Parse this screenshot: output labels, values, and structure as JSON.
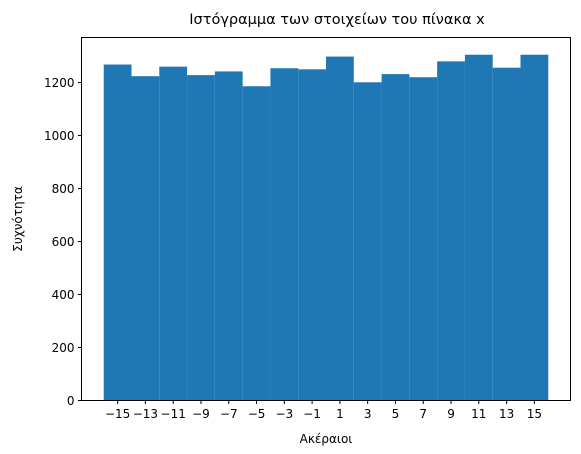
{
  "chart_data": {
    "type": "bar",
    "title": "Ιστόγραμμα των στοιχείων του πίνακα x",
    "xlabel": "Ακέραιοι",
    "ylabel": "Συχνότητα",
    "bins": [
      {
        "start": -16,
        "end": -14,
        "value": 1268
      },
      {
        "start": -14,
        "end": -12,
        "value": 1224
      },
      {
        "start": -12,
        "end": -10,
        "value": 1260
      },
      {
        "start": -10,
        "end": -8,
        "value": 1228
      },
      {
        "start": -8,
        "end": -6,
        "value": 1242
      },
      {
        "start": -6,
        "end": -4,
        "value": 1186
      },
      {
        "start": -4,
        "end": -2,
        "value": 1254
      },
      {
        "start": -2,
        "end": 0,
        "value": 1250
      },
      {
        "start": 0,
        "end": 2,
        "value": 1298
      },
      {
        "start": 2,
        "end": 4,
        "value": 1201
      },
      {
        "start": 4,
        "end": 6,
        "value": 1232
      },
      {
        "start": 6,
        "end": 8,
        "value": 1220
      },
      {
        "start": 8,
        "end": 10,
        "value": 1280
      },
      {
        "start": 10,
        "end": 12,
        "value": 1305
      },
      {
        "start": 12,
        "end": 14,
        "value": 1256
      },
      {
        "start": 14,
        "end": 16,
        "value": 1305
      }
    ],
    "xticks": [
      "−15",
      "−13",
      "−11",
      "−9",
      "−7",
      "−5",
      "−3",
      "−1",
      "1",
      "3",
      "5",
      "7",
      "9",
      "11",
      "13",
      "15"
    ],
    "yticks": [
      "0",
      "200",
      "400",
      "600",
      "800",
      "1000",
      "1200"
    ],
    "xlim": [
      -17.6,
      17.6
    ],
    "ylim": [
      0,
      1370
    ],
    "grid": false,
    "bar_color": "#1f77b4"
  }
}
